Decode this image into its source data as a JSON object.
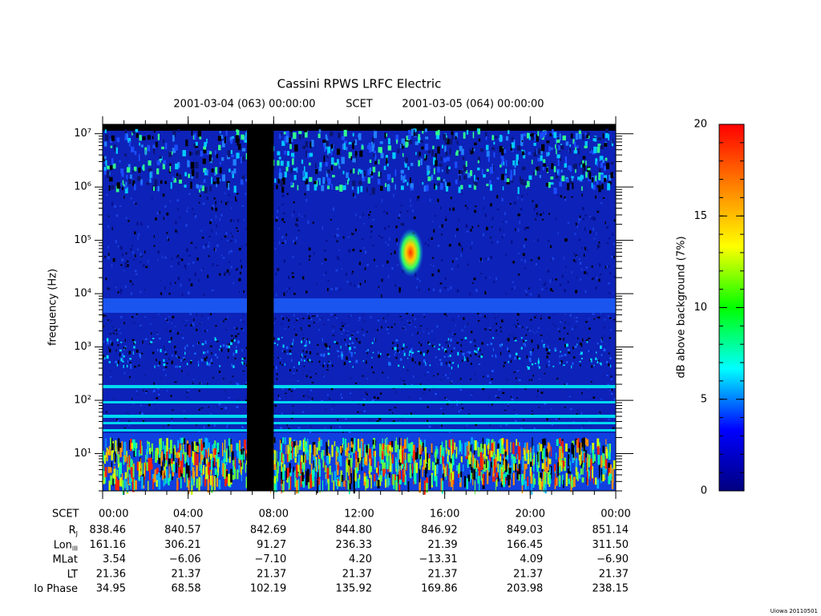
{
  "chart_data": {
    "type": "spectrogram",
    "title": "Cassini RPWS LRFC Electric",
    "time_range": [
      "2001-03-04 (063) 00:00:00",
      "SCET",
      "2001-03-05 (064) 00:00:00"
    ],
    "ylabel": "frequency (Hz)",
    "ylog": true,
    "ylim": [
      2,
      15000000
    ],
    "yticks": [
      {
        "value": 10,
        "label": "10¹"
      },
      {
        "value": 100,
        "label": "10²"
      },
      {
        "value": 1000,
        "label": "10³"
      },
      {
        "value": 10000,
        "label": "10⁴"
      },
      {
        "value": 100000,
        "label": "10⁵"
      },
      {
        "value": 1000000,
        "label": "10⁶"
      },
      {
        "value": 10000000,
        "label": "10⁷"
      }
    ],
    "xlim": [
      0,
      24
    ],
    "xlabel": "SCET",
    "xticks": [
      {
        "value": 0,
        "label": "00:00"
      },
      {
        "value": 4,
        "label": "04:00"
      },
      {
        "value": 8,
        "label": "08:00"
      },
      {
        "value": 12,
        "label": "12:00"
      },
      {
        "value": 16,
        "label": "16:00"
      },
      {
        "value": 20,
        "label": "20:00"
      },
      {
        "value": 24,
        "label": "00:00"
      }
    ],
    "data_gap": [
      6.75,
      8.0
    ],
    "ephemeris": [
      {
        "name": "R",
        "sub": "J",
        "values": [
          "838.46",
          "840.57",
          "842.69",
          "844.80",
          "846.92",
          "849.03",
          "851.14"
        ]
      },
      {
        "name": "Lon",
        "sub": "III",
        "values": [
          "161.16",
          "306.21",
          "91.27",
          "236.33",
          "21.39",
          "166.45",
          "311.50"
        ]
      },
      {
        "name": "MLat",
        "values": [
          "3.54",
          "−6.06",
          "−7.10",
          "4.20",
          "−13.31",
          "4.09",
          "−6.90"
        ]
      },
      {
        "name": "LT",
        "values": [
          "21.36",
          "21.37",
          "21.37",
          "21.37",
          "21.37",
          "21.37",
          "21.37"
        ]
      },
      {
        "name": "Io Phase",
        "values": [
          "34.95",
          "68.58",
          "102.19",
          "135.92",
          "169.86",
          "203.98",
          "238.15"
        ]
      }
    ],
    "colorbar": {
      "label": "dB above background (7%)",
      "zlim": [
        0,
        20
      ],
      "zticks": [
        0,
        5,
        10,
        15,
        20
      ],
      "colors": [
        "#00007f",
        "#0000ff",
        "#00ffff",
        "#00ff00",
        "#ffff00",
        "#ff7f00",
        "#ff0000"
      ]
    },
    "footer": "Uiowa 20110501"
  }
}
